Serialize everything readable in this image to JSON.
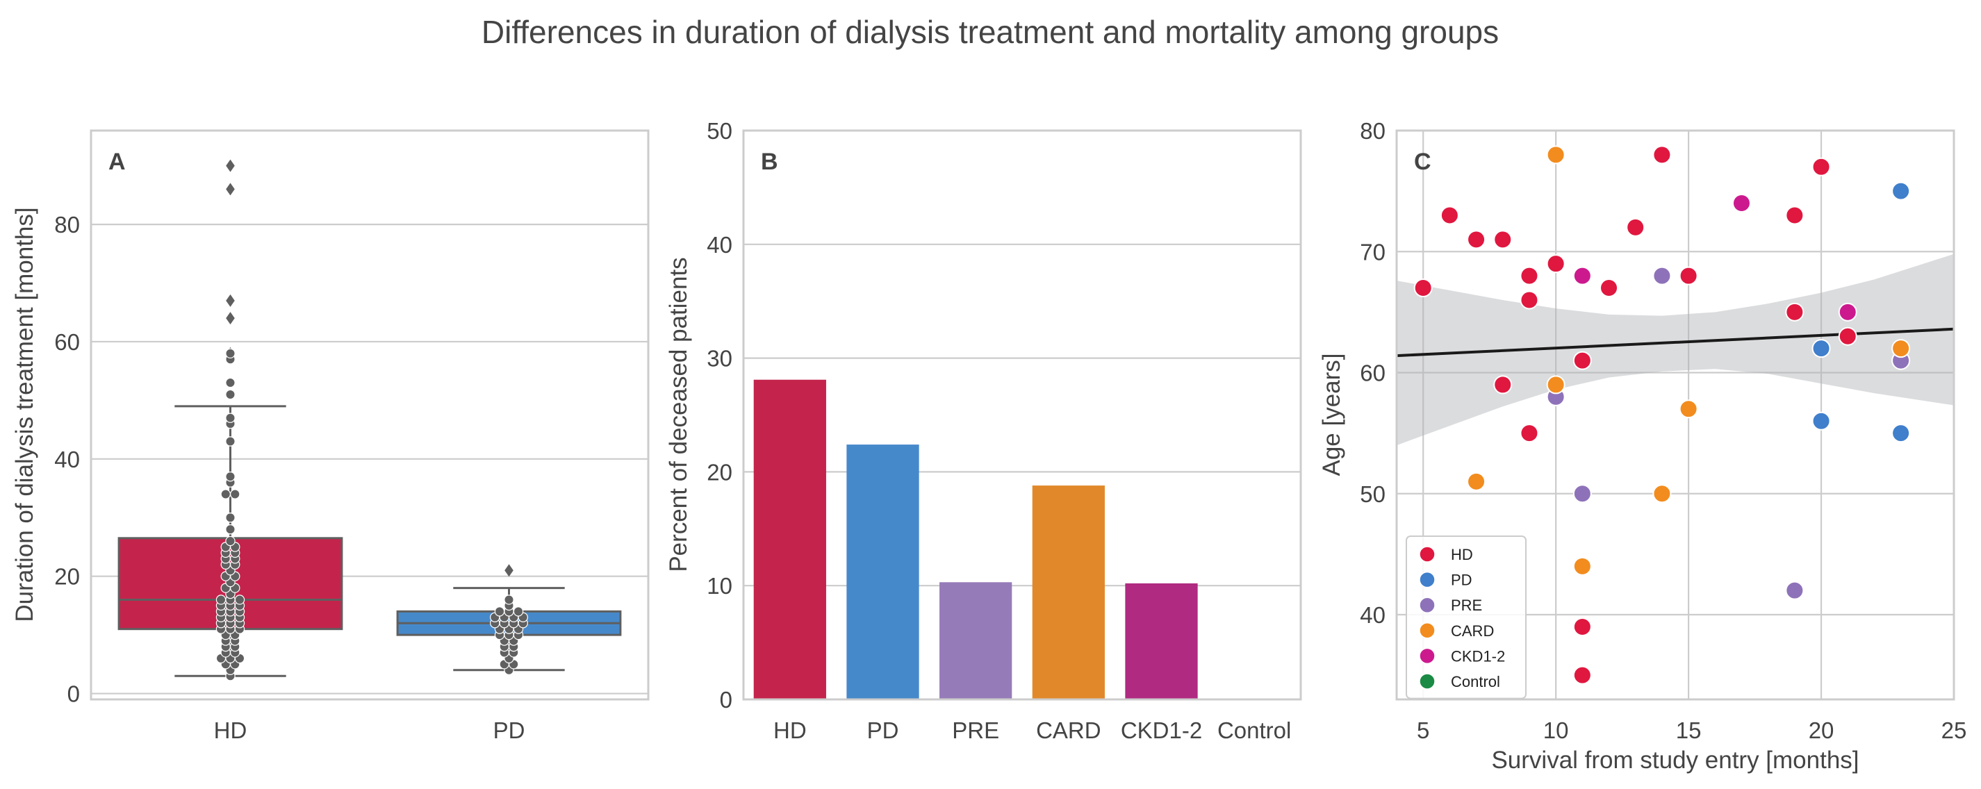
{
  "figure_title": "Differences in duration of dialysis treatment and mortality among groups",
  "colors": {
    "HD": "#C4244C",
    "PD": "#4689CB",
    "PRE": "#967BB9",
    "CARD": "#E1892A",
    "CKD1-2": "#AF2A80",
    "Control": "#1F8A4C"
  },
  "scatter_colors": {
    "HD": "#E0173F",
    "PD": "#3F7FCB",
    "PRE": "#8E72B9",
    "CARD": "#F28C1E",
    "CKD1-2": "#CC1A8E",
    "Control": "#1B8A45"
  },
  "chart_data": [
    {
      "type": "box",
      "panel": "A",
      "ylabel": "Duration of dialysis treatment [months]",
      "xlabel": "",
      "categories": [
        "HD",
        "PD"
      ],
      "ylim": [
        -1,
        96
      ],
      "yticks": [
        0,
        20,
        40,
        60,
        80
      ],
      "grid": true,
      "boxes": [
        {
          "name": "HD",
          "q1": 11,
          "median": 16,
          "q3": 26.5,
          "whisker_low": 3,
          "whisker_high": 49,
          "outliers": [
            58,
            64,
            67,
            86,
            90
          ]
        },
        {
          "name": "PD",
          "q1": 10,
          "median": 12,
          "q3": 14,
          "whisker_low": 4,
          "whisker_high": 18,
          "outliers": [
            21
          ]
        }
      ],
      "swarm": {
        "HD": [
          3,
          4,
          5,
          5,
          6,
          6,
          6,
          7,
          7,
          8,
          8,
          9,
          9,
          10,
          10,
          11,
          11,
          11,
          12,
          12,
          12,
          13,
          13,
          13,
          14,
          14,
          14,
          15,
          15,
          15,
          16,
          16,
          16,
          17,
          18,
          18,
          19,
          20,
          20,
          21,
          22,
          22,
          23,
          23,
          24,
          24,
          25,
          25,
          26,
          28,
          30,
          34,
          34,
          36,
          37,
          43,
          46,
          47,
          51,
          53,
          57,
          58
        ],
        "PD": [
          4,
          5,
          5,
          6,
          7,
          7,
          8,
          8,
          9,
          9,
          10,
          10,
          10,
          11,
          11,
          11,
          12,
          12,
          12,
          12,
          13,
          13,
          13,
          13,
          14,
          14,
          14,
          15,
          16
        ]
      }
    },
    {
      "type": "bar",
      "panel": "B",
      "ylabel": "Percent of deceased patients",
      "xlabel": "",
      "categories": [
        "HD",
        "PD",
        "PRE",
        "CARD",
        "CKD1-2",
        "Control"
      ],
      "values": [
        28.1,
        22.4,
        10.3,
        18.8,
        10.2,
        0
      ],
      "ylim": [
        0,
        50
      ],
      "yticks": [
        0,
        10,
        20,
        30,
        40,
        50
      ],
      "grid": true
    },
    {
      "type": "scatter",
      "panel": "C",
      "xlabel": "Survival from study entry [months]",
      "ylabel": "Age [years]",
      "xlim": [
        4,
        25
      ],
      "ylim": [
        33,
        80
      ],
      "xticks": [
        5,
        10,
        15,
        20,
        25
      ],
      "yticks": [
        40,
        50,
        60,
        70,
        80
      ],
      "grid": true,
      "legend_position": "lower-left",
      "legend": [
        "HD",
        "PD",
        "PRE",
        "CARD",
        "CKD1-2",
        "Control"
      ],
      "regression": {
        "x": [
          4,
          25
        ],
        "y": [
          61.4,
          63.6
        ]
      },
      "confidence_band": {
        "x": [
          4,
          6,
          8,
          10,
          12,
          14,
          16,
          18,
          20,
          22,
          25
        ],
        "upper": [
          67.6,
          66.8,
          66.0,
          65.3,
          64.8,
          64.7,
          65.0,
          65.7,
          66.6,
          67.7,
          69.8
        ],
        "lower": [
          54.0,
          55.6,
          57.2,
          58.6,
          59.6,
          60.1,
          60.3,
          59.9,
          59.1,
          58.3,
          57.3
        ]
      },
      "points": [
        {
          "group": "HD",
          "x": 5,
          "y": 67
        },
        {
          "group": "HD",
          "x": 6,
          "y": 73
        },
        {
          "group": "HD",
          "x": 7,
          "y": 71
        },
        {
          "group": "HD",
          "x": 8,
          "y": 71
        },
        {
          "group": "HD",
          "x": 8,
          "y": 59
        },
        {
          "group": "HD",
          "x": 9,
          "y": 68
        },
        {
          "group": "HD",
          "x": 9,
          "y": 66
        },
        {
          "group": "HD",
          "x": 9,
          "y": 55
        },
        {
          "group": "HD",
          "x": 10,
          "y": 69
        },
        {
          "group": "HD",
          "x": 11,
          "y": 61
        },
        {
          "group": "HD",
          "x": 11,
          "y": 39
        },
        {
          "group": "HD",
          "x": 11,
          "y": 35
        },
        {
          "group": "HD",
          "x": 12,
          "y": 67
        },
        {
          "group": "HD",
          "x": 13,
          "y": 72
        },
        {
          "group": "HD",
          "x": 14,
          "y": 78
        },
        {
          "group": "HD",
          "x": 15,
          "y": 68
        },
        {
          "group": "HD",
          "x": 19,
          "y": 73
        },
        {
          "group": "HD",
          "x": 19,
          "y": 65
        },
        {
          "group": "HD",
          "x": 20,
          "y": 77
        },
        {
          "group": "HD",
          "x": 21,
          "y": 63
        },
        {
          "group": "PD",
          "x": 20,
          "y": 62
        },
        {
          "group": "PD",
          "x": 20,
          "y": 56
        },
        {
          "group": "PD",
          "x": 23,
          "y": 75
        },
        {
          "group": "PD",
          "x": 23,
          "y": 55
        },
        {
          "group": "PRE",
          "x": 10,
          "y": 58
        },
        {
          "group": "PRE",
          "x": 11,
          "y": 50
        },
        {
          "group": "PRE",
          "x": 14,
          "y": 68
        },
        {
          "group": "PRE",
          "x": 19,
          "y": 42
        },
        {
          "group": "PRE",
          "x": 23,
          "y": 61
        },
        {
          "group": "CARD",
          "x": 7,
          "y": 51
        },
        {
          "group": "CARD",
          "x": 10,
          "y": 78
        },
        {
          "group": "CARD",
          "x": 10,
          "y": 59
        },
        {
          "group": "CARD",
          "x": 11,
          "y": 44
        },
        {
          "group": "CARD",
          "x": 14,
          "y": 50
        },
        {
          "group": "CARD",
          "x": 15,
          "y": 57
        },
        {
          "group": "CARD",
          "x": 23,
          "y": 62
        },
        {
          "group": "CKD1-2",
          "x": 11,
          "y": 68
        },
        {
          "group": "CKD1-2",
          "x": 17,
          "y": 74
        },
        {
          "group": "CKD1-2",
          "x": 21,
          "y": 65
        }
      ]
    }
  ]
}
